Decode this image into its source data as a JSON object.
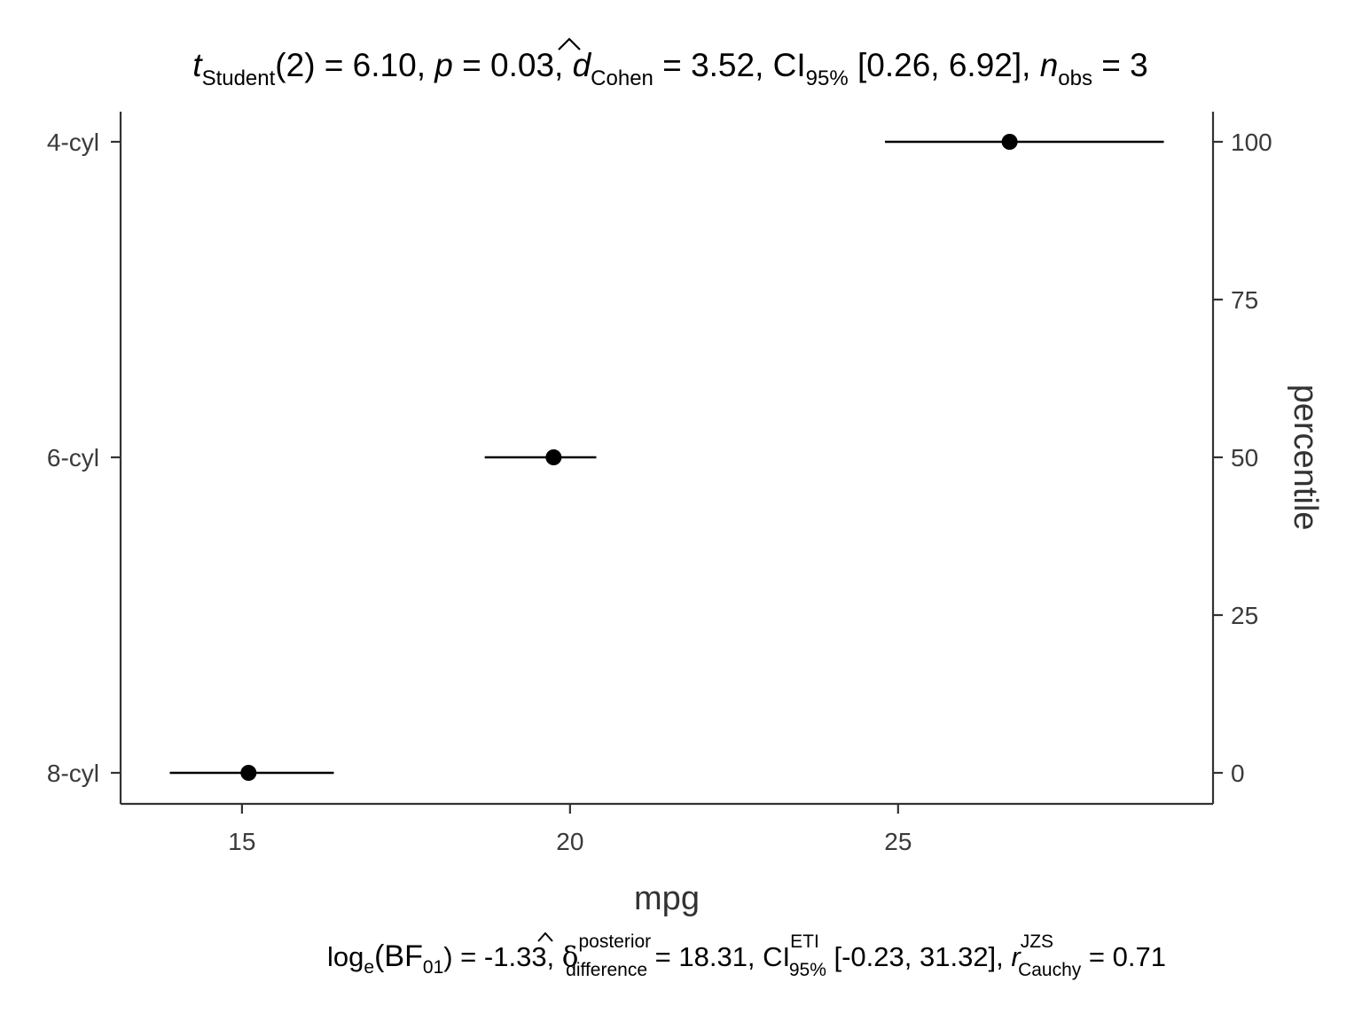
{
  "chart_data": {
    "type": "scatter",
    "xlabel": "mpg",
    "ylabel_right": "percentile",
    "categories": [
      "4-cyl",
      "6-cyl",
      "8-cyl"
    ],
    "points": [
      {
        "category": "4-cyl",
        "mean": 26.7,
        "low": 24.8,
        "high": 29.05,
        "percentile": 100
      },
      {
        "category": "6-cyl",
        "mean": 19.75,
        "low": 18.7,
        "high": 20.4,
        "percentile": 50
      },
      {
        "category": "8-cyl",
        "mean": 15.1,
        "low": 13.9,
        "high": 16.4,
        "percentile": 0
      }
    ],
    "x_ticks": [
      "15",
      "20",
      "25"
    ],
    "x_tick_values": [
      15,
      20,
      25
    ],
    "xlim": [
      13.15,
      29.8
    ],
    "right_ticks": [
      "0",
      "25",
      "50",
      "75",
      "100"
    ],
    "right_tick_values": [
      0,
      25,
      50,
      75,
      100
    ],
    "right_lim": [
      -5,
      105
    ],
    "grid": false,
    "title": {
      "t": "t",
      "t_sub": "Student",
      "t_rest": "(2) = 6.10, ",
      "p": "p",
      "p_rest": " = 0.03, ",
      "d": "d",
      "d_hat": "^",
      "d_sub": "Cohen",
      "d_rest": " = 3.52, CI",
      "ci_sub": "95%",
      "ci_rest": " [0.26, 6.92], ",
      "n": "n",
      "n_sub": "obs",
      "n_rest": " = 3"
    },
    "caption": {
      "log": "log",
      "log_sub": "e",
      "bf": "(BF",
      "bf_sub": "01",
      "bf_rest": ") = -1.33, ",
      "delta": "δ",
      "delta_hat": "^",
      "delta_sup": "posterior",
      "delta_sub": "difference",
      "delta_rest": " = 18.31, CI",
      "ci_sup": "ETI",
      "ci_sub": "95%",
      "ci_rest": " [-0.23, 31.32], ",
      "r": "r",
      "r_sup": "JZS",
      "r_sub": "Cauchy",
      "r_rest": " = 0.71"
    }
  }
}
